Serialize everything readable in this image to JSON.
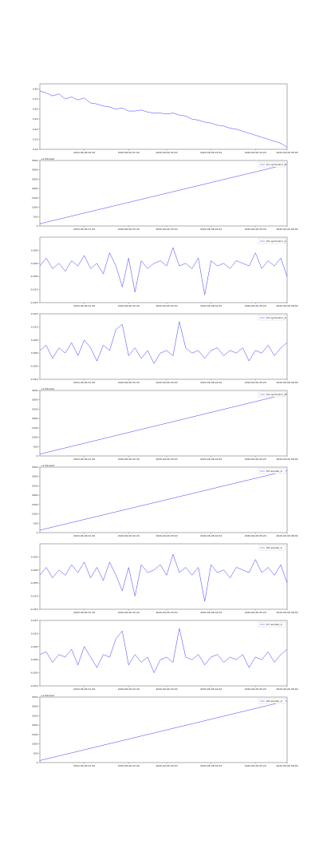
{
  "chart_data": [
    {
      "type": "line",
      "color": "#3a3aff",
      "xlim": [
        0,
        39
      ],
      "ylim": [
        0.2,
        0.85
      ],
      "yticks": [
        {
          "value": 0.2,
          "label": "0.20"
        },
        {
          "value": 0.3,
          "label": "0.30"
        },
        {
          "value": 0.4,
          "label": "0.40"
        },
        {
          "value": 0.5,
          "label": "0.50"
        },
        {
          "value": 0.6,
          "label": "0.60"
        },
        {
          "value": 0.7,
          "label": "0.70"
        },
        {
          "value": 0.8,
          "label": "0.80"
        }
      ],
      "xticks": [
        {
          "value": 7,
          "label": "2020-06-06 00:20"
        },
        {
          "value": 14,
          "label": "2020-06-06 01:20"
        },
        {
          "value": 20,
          "label": "2020-06-06 02:20"
        },
        {
          "value": 27,
          "label": "2020-06-06 03:20"
        },
        {
          "value": 34,
          "label": "2020-06-06 04:20"
        },
        {
          "value": 39,
          "label": "2020-06-06 05:00"
        }
      ],
      "x": [
        0,
        1,
        2,
        3,
        4,
        5,
        6,
        7,
        8,
        9,
        10,
        11,
        12,
        13,
        14,
        15,
        16,
        17,
        18,
        19,
        20,
        21,
        22,
        23,
        24,
        25,
        26,
        27,
        28,
        29,
        30,
        31,
        32,
        33,
        34,
        35,
        36,
        37,
        38,
        39
      ],
      "values": [
        0.78,
        0.76,
        0.73,
        0.75,
        0.7,
        0.72,
        0.69,
        0.71,
        0.66,
        0.65,
        0.63,
        0.62,
        0.6,
        0.61,
        0.58,
        0.58,
        0.59,
        0.57,
        0.56,
        0.56,
        0.55,
        0.56,
        0.54,
        0.53,
        0.5,
        0.49,
        0.47,
        0.46,
        0.44,
        0.43,
        0.41,
        0.4,
        0.38,
        0.36,
        0.34,
        0.32,
        0.3,
        0.28,
        0.26,
        0.22
      ]
    },
    {
      "type": "line",
      "color": "#3a3aff",
      "name": "D1 symmetric_b",
      "annotation": "+1.5911e9",
      "xlim": [
        0,
        39
      ],
      "ylim": [
        0,
        3500
      ],
      "yticks": [
        0,
        500,
        1000,
        1500,
        2000,
        2500,
        3000,
        3500
      ],
      "xticks": [
        {
          "value": 7,
          "label": "2020-06-06 01:20"
        },
        {
          "value": 14,
          "label": "2020-06-06 02:20"
        },
        {
          "value": 20,
          "label": "2020-06-06 03:20"
        },
        {
          "value": 27,
          "label": "2020-06-06 04:20"
        },
        {
          "value": 34,
          "label": "2020-06-06 05:20"
        },
        {
          "value": 39,
          "label": "2020-06-06 06:00"
        }
      ],
      "x": [
        0,
        39
      ],
      "values": [
        120,
        3300
      ]
    },
    {
      "type": "line",
      "color": "#3a3aff",
      "name": "D2 symmetric_b",
      "xlim": [
        0,
        39
      ],
      "ylim": [
        -0.015,
        0.01
      ],
      "yticks": [
        {
          "value": -0.015,
          "label": "-0.015"
        },
        {
          "value": -0.01,
          "label": "-0.010"
        },
        {
          "value": -0.005,
          "label": "-0.005"
        },
        {
          "value": 0,
          "label": "0.000"
        },
        {
          "value": 0.005,
          "label": "0.005"
        }
      ],
      "xticks": [
        {
          "value": 7,
          "label": "2020-06-06 01:20"
        },
        {
          "value": 14,
          "label": "2020-06-06 02:20"
        },
        {
          "value": 20,
          "label": "2020-06-06 03:20"
        },
        {
          "value": 27,
          "label": "2020-06-06 04:20"
        },
        {
          "value": 34,
          "label": "2020-06-06 05:20"
        },
        {
          "value": 39,
          "label": "2020-06-06 06:00"
        }
      ],
      "x": [
        0,
        1,
        2,
        3,
        4,
        5,
        6,
        7,
        8,
        9,
        10,
        11,
        12,
        13,
        14,
        15,
        16,
        17,
        18,
        19,
        20,
        21,
        22,
        23,
        24,
        25,
        26,
        27,
        28,
        29,
        30,
        31,
        32,
        33,
        34,
        35,
        36,
        37,
        38,
        39
      ],
      "values": [
        -0.001,
        0.002,
        -0.002,
        0.0,
        -0.003,
        0.001,
        -0.001,
        0.003,
        -0.002,
        0.0,
        -0.004,
        0.004,
        -0.001,
        -0.009,
        0.002,
        -0.011,
        0.001,
        -0.002,
        0.0,
        0.001,
        -0.001,
        0.006,
        -0.001,
        0.0,
        -0.002,
        0.002,
        -0.012,
        0.001,
        -0.001,
        0.0,
        -0.002,
        0.001,
        0.0,
        -0.001,
        0.004,
        -0.002,
        0.001,
        -0.001,
        0.002,
        -0.005
      ]
    },
    {
      "type": "line",
      "color": "#3a3aff",
      "name": "D3 symmetric_b",
      "xlim": [
        0,
        39
      ],
      "ylim": [
        -0.01,
        0.015
      ],
      "yticks": [
        {
          "value": -0.01,
          "label": "-0.010"
        },
        {
          "value": -0.005,
          "label": "-0.005"
        },
        {
          "value": 0,
          "label": "0.000"
        },
        {
          "value": 0.005,
          "label": "0.005"
        },
        {
          "value": 0.01,
          "label": "0.010"
        },
        {
          "value": 0.015,
          "label": "0.015"
        }
      ],
      "xticks": [
        {
          "value": 7,
          "label": "2020-06-06 01:20"
        },
        {
          "value": 14,
          "label": "2020-06-06 02:20"
        },
        {
          "value": 20,
          "label": "2020-06-06 03:20"
        },
        {
          "value": 27,
          "label": "2020-06-06 04:20"
        },
        {
          "value": 34,
          "label": "2020-06-06 05:20"
        },
        {
          "value": 39,
          "label": "2020-06-06 06:00"
        }
      ],
      "x": [
        0,
        1,
        2,
        3,
        4,
        5,
        6,
        7,
        8,
        9,
        10,
        11,
        12,
        13,
        14,
        15,
        16,
        17,
        18,
        19,
        20,
        21,
        22,
        23,
        24,
        25,
        26,
        27,
        28,
        29,
        30,
        31,
        32,
        33,
        34,
        35,
        36,
        37,
        38,
        39
      ],
      "values": [
        0.001,
        0.003,
        -0.002,
        0.002,
        0.0,
        0.004,
        -0.001,
        0.005,
        0.002,
        -0.003,
        0.003,
        0.001,
        0.009,
        0.011,
        -0.001,
        0.002,
        -0.002,
        0.001,
        -0.004,
        0.0,
        0.001,
        -0.001,
        0.012,
        0.002,
        0.0,
        0.001,
        -0.002,
        0.001,
        0.002,
        -0.001,
        0.001,
        0.0,
        0.002,
        -0.003,
        0.001,
        0.0,
        0.003,
        -0.001,
        0.002,
        0.004
      ]
    },
    {
      "type": "line",
      "color": "#3a3aff",
      "name": "D4 symmetric_b",
      "annotation": "+1.5911e9",
      "xlim": [
        0,
        39
      ],
      "ylim": [
        0,
        3500
      ],
      "yticks": [
        0,
        500,
        1000,
        1500,
        2000,
        2500,
        3000,
        3500
      ],
      "xticks": [
        {
          "value": 7,
          "label": "2020-06-06 01:20"
        },
        {
          "value": 14,
          "label": "2020-06-06 02:20"
        },
        {
          "value": 20,
          "label": "2020-06-06 03:20"
        },
        {
          "value": 27,
          "label": "2020-06-06 04:20"
        },
        {
          "value": 34,
          "label": "2020-06-06 05:20"
        },
        {
          "value": 39,
          "label": "2020-06-06 06:00"
        }
      ],
      "x": [
        0,
        39
      ],
      "values": [
        100,
        3320
      ]
    },
    {
      "type": "line",
      "color": "#3a3aff",
      "name": "D5 asm/ab_b",
      "annotation": "+1.5911e9",
      "xlim": [
        0,
        39
      ],
      "ylim": [
        0,
        3500
      ],
      "yticks": [
        0,
        500,
        1000,
        1500,
        2000,
        2500,
        3000,
        3500
      ],
      "xticks": [
        {
          "value": 7,
          "label": "2020-06-06 01:20"
        },
        {
          "value": 14,
          "label": "2020-06-06 02:20"
        },
        {
          "value": 20,
          "label": "2020-06-06 03:20"
        },
        {
          "value": 27,
          "label": "2020-06-06 04:20"
        },
        {
          "value": 34,
          "label": "2020-06-06 05:20"
        },
        {
          "value": 39,
          "label": "2020-06-06 06:00"
        }
      ],
      "x": [
        0,
        39
      ],
      "values": [
        130,
        3310
      ]
    },
    {
      "type": "line",
      "color": "#3a3aff",
      "name": "D6 asm/ab_b",
      "xlim": [
        0,
        39
      ],
      "ylim": [
        -0.015,
        0.01
      ],
      "yticks": [
        {
          "value": -0.015,
          "label": "-0.015"
        },
        {
          "value": -0.01,
          "label": "-0.010"
        },
        {
          "value": -0.005,
          "label": "-0.005"
        },
        {
          "value": 0,
          "label": "0.000"
        },
        {
          "value": 0.005,
          "label": "0.005"
        }
      ],
      "xticks": [
        {
          "value": 7,
          "label": "2020-06-06 01:20"
        },
        {
          "value": 14,
          "label": "2020-06-06 02:20"
        },
        {
          "value": 20,
          "label": "2020-06-06 03:20"
        },
        {
          "value": 27,
          "label": "2020-06-06 04:20"
        },
        {
          "value": 34,
          "label": "2020-06-06 05:20"
        },
        {
          "value": 39,
          "label": "2020-06-06 06:00"
        }
      ],
      "x": [
        0,
        1,
        2,
        3,
        4,
        5,
        6,
        7,
        8,
        9,
        10,
        11,
        12,
        13,
        14,
        15,
        16,
        17,
        18,
        19,
        20,
        21,
        22,
        23,
        24,
        25,
        26,
        27,
        28,
        29,
        30,
        31,
        32,
        33,
        34,
        35,
        36,
        37,
        38,
        39
      ],
      "values": [
        -0.002,
        0.001,
        -0.003,
        0.0,
        -0.002,
        0.002,
        -0.001,
        0.003,
        -0.003,
        0.001,
        -0.004,
        0.003,
        -0.002,
        -0.008,
        0.001,
        -0.01,
        0.002,
        -0.001,
        0.0,
        0.002,
        -0.002,
        0.006,
        -0.001,
        0.001,
        -0.002,
        0.001,
        -0.012,
        0.002,
        -0.001,
        0.0,
        -0.003,
        0.001,
        0.0,
        -0.001,
        0.004,
        -0.001,
        0.001,
        -0.002,
        0.002,
        -0.005
      ]
    },
    {
      "type": "line",
      "color": "#3a3aff",
      "name": "D7 asm/ab_b",
      "xlim": [
        0,
        39
      ],
      "ylim": [
        -0.01,
        0.015
      ],
      "yticks": [
        {
          "value": -0.01,
          "label": "-0.010"
        },
        {
          "value": -0.005,
          "label": "-0.005"
        },
        {
          "value": 0,
          "label": "0.000"
        },
        {
          "value": 0.005,
          "label": "0.005"
        },
        {
          "value": 0.01,
          "label": "0.010"
        },
        {
          "value": 0.015,
          "label": "0.015"
        }
      ],
      "xticks": [
        {
          "value": 7,
          "label": "2020-06-06 01:20"
        },
        {
          "value": 14,
          "label": "2020-06-06 02:20"
        },
        {
          "value": 20,
          "label": "2020-06-06 03:20"
        },
        {
          "value": 27,
          "label": "2020-06-06 04:20"
        },
        {
          "value": 34,
          "label": "2020-06-06 05:20"
        },
        {
          "value": 39,
          "label": "2020-06-06 06:00"
        }
      ],
      "x": [
        0,
        1,
        2,
        3,
        4,
        5,
        6,
        7,
        8,
        9,
        10,
        11,
        12,
        13,
        14,
        15,
        16,
        17,
        18,
        19,
        20,
        21,
        22,
        23,
        24,
        25,
        26,
        27,
        28,
        29,
        30,
        31,
        32,
        33,
        34,
        35,
        36,
        37,
        38,
        39
      ],
      "values": [
        0.002,
        0.003,
        -0.001,
        0.002,
        0.001,
        0.004,
        -0.002,
        0.005,
        0.001,
        -0.003,
        0.002,
        0.001,
        0.008,
        0.011,
        -0.002,
        0.002,
        -0.001,
        0.001,
        -0.005,
        0.0,
        0.001,
        -0.001,
        0.012,
        0.001,
        0.0,
        0.002,
        -0.002,
        0.001,
        0.002,
        -0.001,
        0.001,
        0.0,
        0.002,
        -0.003,
        0.001,
        0.0,
        0.003,
        -0.001,
        0.002,
        0.004
      ]
    },
    {
      "type": "line",
      "color": "#3a3aff",
      "name": "D8 asm/ab_b",
      "annotation": "+1.5911e9",
      "xlim": [
        0,
        39
      ],
      "ylim": [
        0,
        3500
      ],
      "yticks": [
        0,
        500,
        1000,
        1500,
        2000,
        2500,
        3000,
        3500
      ],
      "xticks": [
        {
          "value": 7,
          "label": "2020-06-06 01:20"
        },
        {
          "value": 14,
          "label": "2020-06-06 02:20"
        },
        {
          "value": 20,
          "label": "2020-06-06 03:20"
        },
        {
          "value": 27,
          "label": "2020-06-06 04:20"
        },
        {
          "value": 34,
          "label": "2020-06-06 05:20"
        },
        {
          "value": 39,
          "label": "2020-06-06 06:00"
        }
      ],
      "x": [
        0,
        39
      ],
      "values": [
        110,
        3300
      ]
    }
  ]
}
